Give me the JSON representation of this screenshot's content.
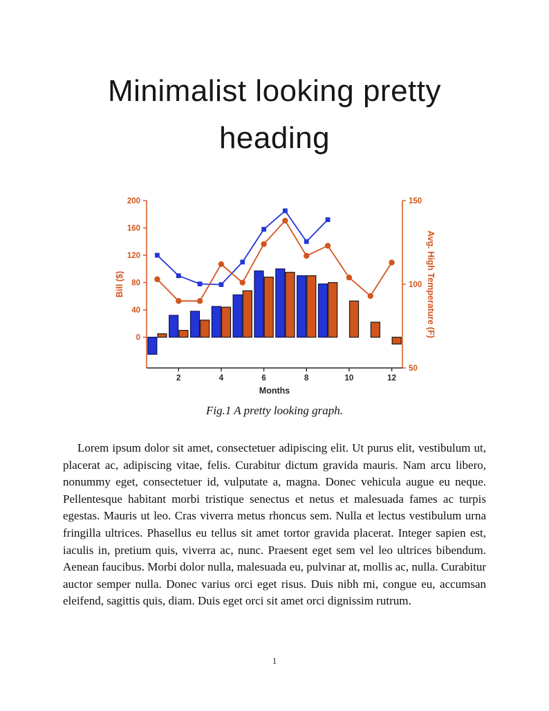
{
  "heading": {
    "lines": [
      "Minimalist looking pretty",
      "heading"
    ]
  },
  "figure": {
    "caption": "Fig.1 A pretty looking graph."
  },
  "body": {
    "paragraph": "Lorem ipsum dolor sit amet, consectetuer adipiscing elit. Ut purus elit, vestibulum ut, placerat ac, adipiscing vitae, felis. Curabitur dictum gravida mauris. Nam arcu libero, nonummy eget, consectetuer id, vulputate a, magna. Donec vehicula augue eu neque. Pellentesque habitant morbi tristique senectus et netus et malesuada fames ac turpis egestas. Mauris ut leo. Cras viverra metus rhoncus sem. Nulla et lectus vestibulum urna fringilla ultrices. Phasellus eu tellus sit amet tortor gravida placerat. Integer sapien est, iaculis in, pretium quis, viverra ac, nunc. Praesent eget sem vel leo ultrices bibendum. Aenean faucibus. Morbi dolor nulla, malesuada eu, pulvinar at, mollis ac, nulla. Curabitur auctor semper nulla. Donec varius orci eget risus. Duis nibh mi, congue eu, accumsan eleifend, sagittis quis, diam. Duis eget orci sit amet orci dignissim rutrum."
  },
  "footer": {
    "page_number": "1"
  },
  "chart_data": {
    "type": "bar",
    "subtype": "grouped bars with dual-axis marker lines",
    "title": "",
    "xlabel": "Months",
    "ylabel_left": "Bill ($)",
    "ylabel_right": "Avg. High Temperature (F)",
    "x": [
      1,
      2,
      3,
      4,
      5,
      6,
      7,
      8,
      9,
      10,
      11,
      12
    ],
    "x_ticks": [
      2,
      4,
      6,
      8,
      10,
      12
    ],
    "left_ticks": [
      0,
      40,
      80,
      120,
      160,
      200
    ],
    "right_ticks": [
      50,
      100,
      150
    ],
    "left_range": [
      -45,
      200
    ],
    "right_range": [
      50,
      150
    ],
    "grid": false,
    "legend": "none",
    "colors": {
      "blue": "#2335d4",
      "blue_edge": "#0d1560",
      "orange": "#d2551e",
      "orange_edge": "#1a1a1a",
      "axis_orange": "#d2551e",
      "axis_dark": "#262626"
    },
    "series": [
      {
        "name": "bill-bars-blue",
        "type": "bar",
        "axis": "left",
        "color": "blue",
        "values": [
          -25,
          32,
          38,
          45,
          62,
          97,
          100,
          90,
          78,
          null,
          null,
          null
        ]
      },
      {
        "name": "bill-bars-orange",
        "type": "bar",
        "axis": "left",
        "color": "orange",
        "values": [
          5,
          10,
          25,
          44,
          68,
          88,
          95,
          90,
          80,
          53,
          22,
          -10
        ]
      },
      {
        "name": "bill-line-blue",
        "type": "line",
        "axis": "left",
        "marker": "square",
        "color": "blue",
        "values": [
          120,
          90,
          78,
          77,
          110,
          158,
          185,
          140,
          172,
          null,
          null,
          null
        ]
      },
      {
        "name": "temperature-line-orange",
        "type": "line",
        "axis": "right",
        "marker": "circle",
        "color": "orange",
        "values": [
          103,
          90,
          90,
          112,
          101,
          124,
          138,
          117,
          123,
          104,
          93,
          113
        ]
      }
    ]
  }
}
